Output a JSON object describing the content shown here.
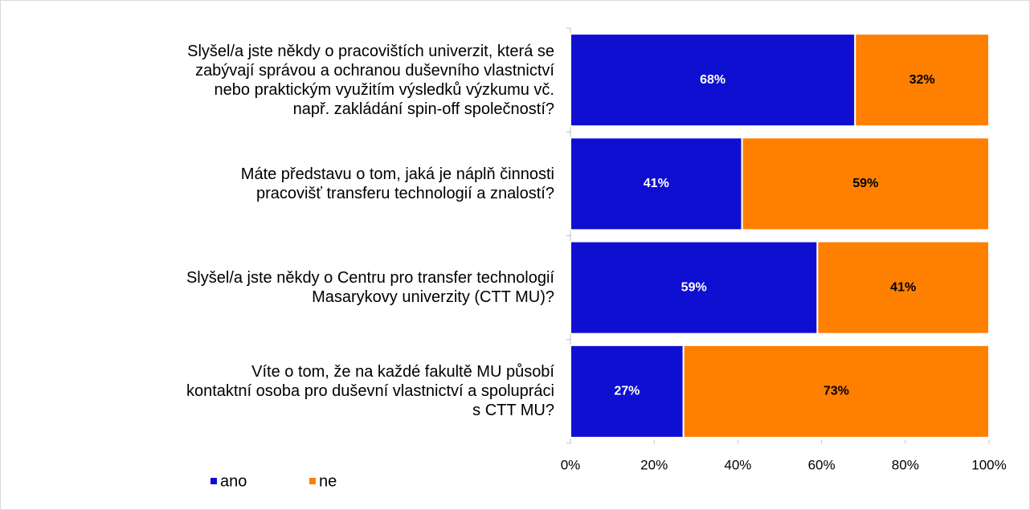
{
  "chart_data": {
    "type": "stacked-barh",
    "categories": [
      "Slyšel/a jste někdy o pracovištích univerzit, která se\nzabývají správou a ochranou duševního vlastnictví\nnebo praktickým využitím výsledků výzkumu vč.\nnapř. zakládání spin-off společností?",
      "Máte představu o tom, jaká je náplň činnosti\npracovišť transferu technologií a znalostí?",
      "Slyšel/a jste někdy o Centru pro transfer technologií\nMasarykovy univerzity (CTT MU)?",
      "Víte o tom, že na každé fakultě MU působí\nkontaktní osoba pro duševní vlastnictví a spolupráci\ns CTT MU?"
    ],
    "series": [
      {
        "name": "ano",
        "color": "#0f0fd2",
        "label_color": "#ffffff",
        "values": [
          68,
          41,
          59,
          27
        ],
        "value_labels": [
          "68%",
          "41%",
          "59%",
          "27%"
        ]
      },
      {
        "name": "ne",
        "color": "#ff7f00",
        "label_color": "#000000",
        "values": [
          32,
          59,
          41,
          73
        ],
        "value_labels": [
          "32%",
          "59%",
          "41%",
          "73%"
        ]
      }
    ],
    "xlim": [
      0,
      100
    ],
    "xticks": [
      {
        "value": 0,
        "label": "0%"
      },
      {
        "value": 20,
        "label": "20%"
      },
      {
        "value": 40,
        "label": "40%"
      },
      {
        "value": 60,
        "label": "60%"
      },
      {
        "value": 80,
        "label": "80%"
      },
      {
        "value": 100,
        "label": "100%"
      }
    ],
    "legend": "bottom-left"
  }
}
